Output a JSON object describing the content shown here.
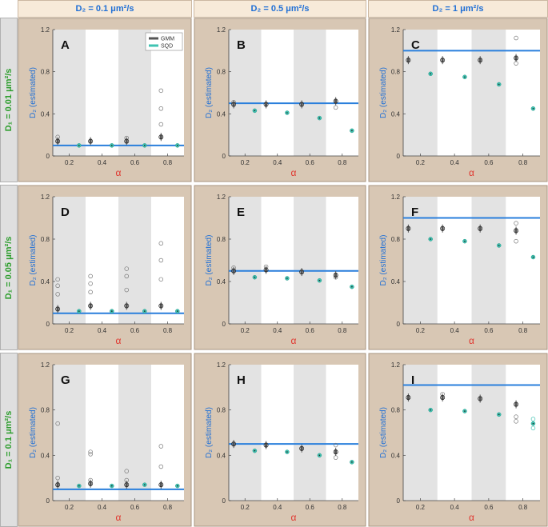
{
  "figure": {
    "column_headers": [
      "D₂ = 0.1 μm²/s",
      "D₂ = 0.5 μm²/s",
      "D₂ = 1 μm²/s"
    ],
    "row_headers": [
      "D₁ = 0.01 μm²/s",
      "D₁ = 0.05 μm²/s",
      "D₁ = 0.1 μm²/s"
    ],
    "legend": [
      "GMM",
      "SQD"
    ],
    "colors": {
      "gmm": "#555555",
      "sqd": "#3fc3b2",
      "true_line": "#2a7fdc",
      "shade": "#e3e3e3",
      "panel_bg": "#d8c7b4",
      "header_bg": "#f7ead9",
      "row_header": "#2e9e2e",
      "axis_label_blue": "#1f6fd6",
      "alpha_red": "#e0342c"
    }
  },
  "chart_data": [
    {
      "type": "scatter",
      "panel": "A",
      "ylabel": "D₂ (estimated)",
      "xlabel": "α",
      "xticks": [
        "0.2",
        "0.4",
        "0.6",
        "0.8"
      ],
      "yticks": [
        "0",
        "0.4",
        "0.8",
        "1.2"
      ],
      "xlim": [
        0.1,
        0.9
      ],
      "ylim": [
        0,
        1.2
      ],
      "true_value": 0.1,
      "series": [
        {
          "name": "GMM",
          "x": [
            0.13,
            0.33,
            0.55,
            0.76
          ],
          "y": [
            0.14,
            0.14,
            0.14,
            0.18
          ],
          "outliers": [
            [
              0.13,
              0.18
            ],
            [
              0.55,
              0.17
            ],
            [
              0.76,
              0.45
            ],
            [
              0.76,
              0.62
            ],
            [
              0.76,
              0.3
            ]
          ]
        },
        {
          "name": "SQD",
          "x": [
            0.26,
            0.46,
            0.66,
            0.86
          ],
          "y": [
            0.1,
            0.1,
            0.1,
            0.1
          ]
        }
      ]
    },
    {
      "type": "scatter",
      "panel": "B",
      "ylabel": "D₂ (estimated)",
      "xlabel": "α",
      "xticks": [
        "0.2",
        "0.4",
        "0.6",
        "0.8"
      ],
      "yticks": [
        "0",
        "0.4",
        "0.8",
        "1.2"
      ],
      "xlim": [
        0.1,
        0.9
      ],
      "ylim": [
        0,
        1.2
      ],
      "true_value": 0.5,
      "series": [
        {
          "name": "GMM",
          "x": [
            0.13,
            0.33,
            0.55,
            0.76
          ],
          "y": [
            0.49,
            0.49,
            0.49,
            0.52
          ],
          "outliers": [
            [
              0.13,
              0.51
            ],
            [
              0.76,
              0.46
            ]
          ]
        },
        {
          "name": "SQD",
          "x": [
            0.26,
            0.46,
            0.66,
            0.86
          ],
          "y": [
            0.43,
            0.41,
            0.36,
            0.24
          ]
        }
      ]
    },
    {
      "type": "scatter",
      "panel": "C",
      "ylabel": "D₂ (estimated)",
      "xlabel": "α",
      "xticks": [
        "0.2",
        "0.4",
        "0.6",
        "0.8"
      ],
      "yticks": [
        "0",
        "0.4",
        "0.8",
        "1.2"
      ],
      "xlim": [
        0.1,
        0.9
      ],
      "ylim": [
        0,
        1.2
      ],
      "true_value": 1.0,
      "series": [
        {
          "name": "GMM",
          "x": [
            0.13,
            0.33,
            0.55,
            0.76
          ],
          "y": [
            0.91,
            0.91,
            0.91,
            0.93
          ],
          "outliers": [
            [
              0.76,
              1.12
            ],
            [
              0.76,
              0.88
            ]
          ]
        },
        {
          "name": "SQD",
          "x": [
            0.26,
            0.46,
            0.66,
            0.86
          ],
          "y": [
            0.78,
            0.75,
            0.68,
            0.45
          ]
        }
      ]
    },
    {
      "type": "scatter",
      "panel": "D",
      "ylabel": "D₂ (estimated)",
      "xlabel": "α",
      "xticks": [
        "0.2",
        "0.4",
        "0.6",
        "0.8"
      ],
      "yticks": [
        "0",
        "0.4",
        "0.8",
        "1.2"
      ],
      "xlim": [
        0.1,
        0.9
      ],
      "ylim": [
        0,
        1.2
      ],
      "true_value": 0.1,
      "series": [
        {
          "name": "GMM",
          "x": [
            0.13,
            0.33,
            0.55,
            0.76
          ],
          "y": [
            0.14,
            0.17,
            0.17,
            0.17
          ],
          "outliers": [
            [
              0.13,
              0.28
            ],
            [
              0.13,
              0.36
            ],
            [
              0.13,
              0.42
            ],
            [
              0.33,
              0.3
            ],
            [
              0.33,
              0.38
            ],
            [
              0.33,
              0.45
            ],
            [
              0.55,
              0.32
            ],
            [
              0.55,
              0.45
            ],
            [
              0.55,
              0.52
            ],
            [
              0.76,
              0.42
            ],
            [
              0.76,
              0.6
            ],
            [
              0.76,
              0.76
            ]
          ]
        },
        {
          "name": "SQD",
          "x": [
            0.26,
            0.46,
            0.66,
            0.86
          ],
          "y": [
            0.12,
            0.12,
            0.12,
            0.12
          ]
        }
      ]
    },
    {
      "type": "scatter",
      "panel": "E",
      "ylabel": "D₂ (estimated)",
      "xlabel": "α",
      "xticks": [
        "0.2",
        "0.4",
        "0.6",
        "0.8"
      ],
      "yticks": [
        "0",
        "0.4",
        "0.8",
        "1.2"
      ],
      "xlim": [
        0.1,
        0.9
      ],
      "ylim": [
        0,
        1.2
      ],
      "true_value": 0.5,
      "series": [
        {
          "name": "GMM",
          "x": [
            0.13,
            0.33,
            0.55,
            0.76
          ],
          "y": [
            0.5,
            0.51,
            0.49,
            0.46
          ],
          "outliers": [
            [
              0.13,
              0.53
            ],
            [
              0.33,
              0.54
            ],
            [
              0.76,
              0.44
            ]
          ]
        },
        {
          "name": "SQD",
          "x": [
            0.26,
            0.46,
            0.66,
            0.86
          ],
          "y": [
            0.44,
            0.43,
            0.41,
            0.35
          ]
        }
      ]
    },
    {
      "type": "scatter",
      "panel": "F",
      "ylabel": "D₂ (estimated)",
      "xlabel": "α",
      "xticks": [
        "0.2",
        "0.4",
        "0.6",
        "0.8"
      ],
      "yticks": [
        "0",
        "0.4",
        "0.8",
        "1.2"
      ],
      "xlim": [
        0.1,
        0.9
      ],
      "ylim": [
        0,
        1.2
      ],
      "true_value": 1.0,
      "series": [
        {
          "name": "GMM",
          "x": [
            0.13,
            0.33,
            0.55,
            0.76
          ],
          "y": [
            0.9,
            0.9,
            0.9,
            0.88
          ],
          "outliers": [
            [
              0.76,
              0.95
            ],
            [
              0.76,
              0.78
            ]
          ]
        },
        {
          "name": "SQD",
          "x": [
            0.26,
            0.46,
            0.66,
            0.86
          ],
          "y": [
            0.8,
            0.78,
            0.74,
            0.63
          ]
        }
      ]
    },
    {
      "type": "scatter",
      "panel": "G",
      "ylabel": "D₂ (estimated)",
      "xlabel": "α",
      "xticks": [
        "0.2",
        "0.4",
        "0.6",
        "0.8"
      ],
      "yticks": [
        "0",
        "0.4",
        "0.8",
        "1.2"
      ],
      "xlim": [
        0.1,
        0.9
      ],
      "ylim": [
        0,
        1.2
      ],
      "true_value": 0.1,
      "series": [
        {
          "name": "GMM",
          "x": [
            0.13,
            0.33,
            0.55,
            0.76
          ],
          "y": [
            0.14,
            0.15,
            0.14,
            0.14
          ],
          "outliers": [
            [
              0.13,
              0.2
            ],
            [
              0.13,
              0.68
            ],
            [
              0.33,
              0.18
            ],
            [
              0.33,
              0.41
            ],
            [
              0.33,
              0.43
            ],
            [
              0.55,
              0.18
            ],
            [
              0.55,
              0.26
            ],
            [
              0.76,
              0.3
            ],
            [
              0.76,
              0.48
            ]
          ]
        },
        {
          "name": "SQD",
          "x": [
            0.26,
            0.46,
            0.66,
            0.86
          ],
          "y": [
            0.13,
            0.13,
            0.14,
            0.13
          ]
        }
      ]
    },
    {
      "type": "scatter",
      "panel": "H",
      "ylabel": "D₂ (estimated)",
      "xlabel": "α",
      "xticks": [
        "0.2",
        "0.4",
        "0.6",
        "0.8"
      ],
      "yticks": [
        "0",
        "0.4",
        "0.8",
        "1.2"
      ],
      "xlim": [
        0.1,
        0.9
      ],
      "ylim": [
        0,
        1.2
      ],
      "true_value": 0.5,
      "series": [
        {
          "name": "GMM",
          "x": [
            0.13,
            0.33,
            0.55,
            0.76
          ],
          "y": [
            0.5,
            0.49,
            0.46,
            0.43
          ],
          "outliers": [
            [
              0.76,
              0.38
            ],
            [
              0.76,
              0.49
            ]
          ]
        },
        {
          "name": "SQD",
          "x": [
            0.26,
            0.46,
            0.66,
            0.86
          ],
          "y": [
            0.44,
            0.43,
            0.4,
            0.34
          ]
        }
      ]
    },
    {
      "type": "scatter",
      "panel": "I",
      "ylabel": "D₂ (estimated)",
      "xlabel": "α",
      "xticks": [
        "0.2",
        "0.4",
        "0.6",
        "0.8"
      ],
      "yticks": [
        "0",
        "0.4",
        "0.8",
        "1.2"
      ],
      "xlim": [
        0.1,
        0.9
      ],
      "ylim": [
        0,
        1.2
      ],
      "true_value": 1.02,
      "series": [
        {
          "name": "GMM",
          "x": [
            0.13,
            0.33,
            0.55,
            0.76
          ],
          "y": [
            0.91,
            0.91,
            0.9,
            0.85
          ],
          "outliers": [
            [
              0.33,
              0.94
            ],
            [
              0.76,
              0.7
            ],
            [
              0.76,
              0.74
            ]
          ]
        },
        {
          "name": "SQD",
          "x": [
            0.26,
            0.46,
            0.66,
            0.86
          ],
          "y": [
            0.8,
            0.79,
            0.76,
            0.68
          ],
          "outliers": [
            [
              0.86,
              0.72
            ],
            [
              0.86,
              0.64
            ]
          ]
        }
      ]
    }
  ]
}
